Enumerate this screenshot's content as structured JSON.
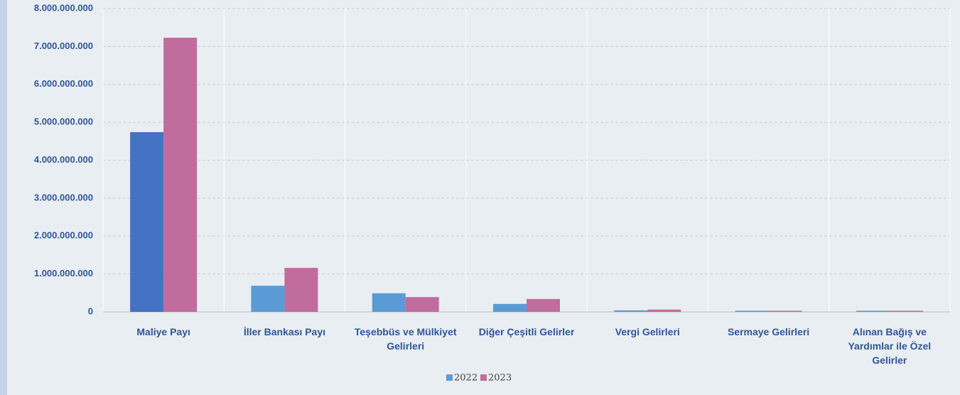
{
  "chart_data": {
    "type": "bar",
    "categories": [
      "Maliye Payı",
      "İller Bankası Payı",
      "Teşebbüs ve Mülkiyet Gelirleri",
      "Diğer Çeşitli Gelirler",
      "Vergi Gelirleri",
      "Sermaye Gelirleri",
      "Alınan Bağış ve Yardımlar ile Özel Gelirler"
    ],
    "series": [
      {
        "name": "2022",
        "color": "#5b9bd5",
        "colors": [
          "#4472c4",
          "#5b9bd5",
          "#5b9bd5",
          "#5b9bd5",
          "#5b9bd5",
          "#5b9bd5",
          "#5b9bd5"
        ],
        "values": [
          4740000000,
          690000000,
          490000000,
          210000000,
          40000000,
          30000000,
          30000000
        ]
      },
      {
        "name": "2023",
        "color": "#c06c9c",
        "values": [
          7230000000,
          1160000000,
          390000000,
          340000000,
          60000000,
          30000000,
          30000000
        ]
      }
    ],
    "ylim": [
      0,
      8000000000
    ],
    "yticks": [
      0,
      {
        "value": 1000000000,
        "label": "1.000.000.000"
      },
      {
        "value": 2000000000,
        "label": "2.000.000.000"
      },
      {
        "value": 3000000000,
        "label": "3.000.000.000"
      },
      {
        "value": 4000000000,
        "label": "4.000.000.000"
      },
      {
        "value": 5000000000,
        "label": "5.000.000.000"
      },
      {
        "value": 6000000000,
        "label": "6.000.000.000"
      },
      {
        "value": 7000000000,
        "label": "7.000.000.000"
      },
      {
        "value": 8000000000,
        "label": "8.000.000.000"
      }
    ],
    "grid": true,
    "legend": "bottom"
  }
}
